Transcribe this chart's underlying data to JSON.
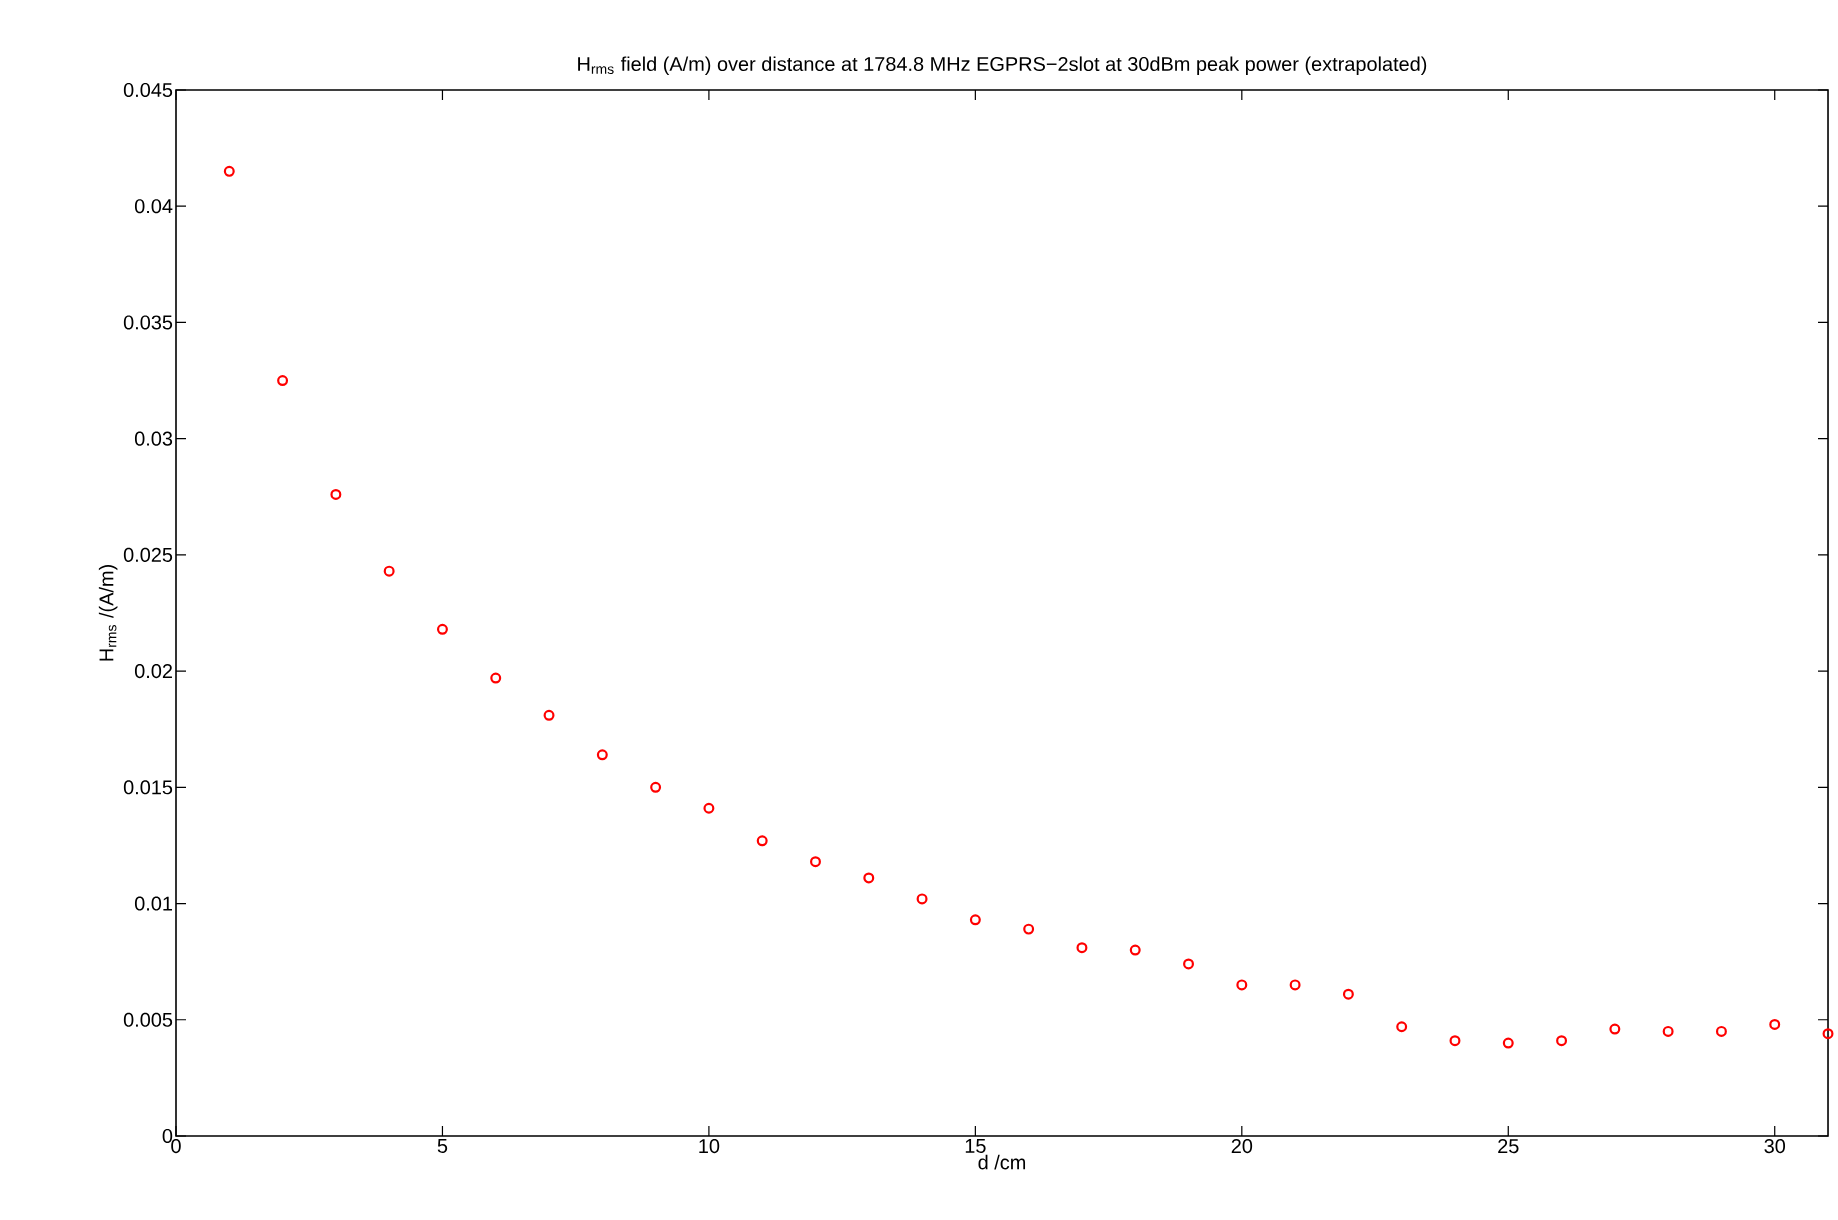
{
  "chart_data": {
    "type": "scatter",
    "title": "H$_{rms}$ field (A/m) over distance at 1784.8 MHz EGPRS−2slot at 30dBm peak power (extrapolated)",
    "xlabel": "d /cm",
    "ylabel": "H$_{rms}$ /(A/m)",
    "x": [
      1,
      2,
      3,
      4,
      5,
      6,
      7,
      8,
      9,
      10,
      11,
      12,
      13,
      14,
      15,
      16,
      17,
      18,
      19,
      20,
      21,
      22,
      23,
      24,
      25,
      26,
      27,
      28,
      29,
      30,
      31
    ],
    "series": [
      {
        "color": "#ff0000",
        "values": [
          0.0415,
          0.0325,
          0.0276,
          0.0243,
          0.0218,
          0.0197,
          0.0181,
          0.0164,
          0.015,
          0.0141,
          0.0127,
          0.0118,
          0.0111,
          0.0102,
          0.0093,
          0.0089,
          0.0081,
          0.008,
          0.0074,
          0.0065,
          0.0065,
          0.0061,
          0.0047,
          0.0041,
          0.004,
          0.0041,
          0.0046,
          0.0045,
          0.0045,
          0.0048,
          0.0044
        ]
      }
    ],
    "xlim": [
      0,
      31
    ],
    "ylim": [
      0,
      0.045
    ],
    "xticks": [
      0,
      5,
      10,
      15,
      20,
      25,
      30
    ],
    "yticks": [
      0,
      0.005,
      0.01,
      0.015,
      0.02,
      0.025,
      0.03,
      0.035,
      0.04,
      0.045
    ],
    "marker": "circle"
  }
}
